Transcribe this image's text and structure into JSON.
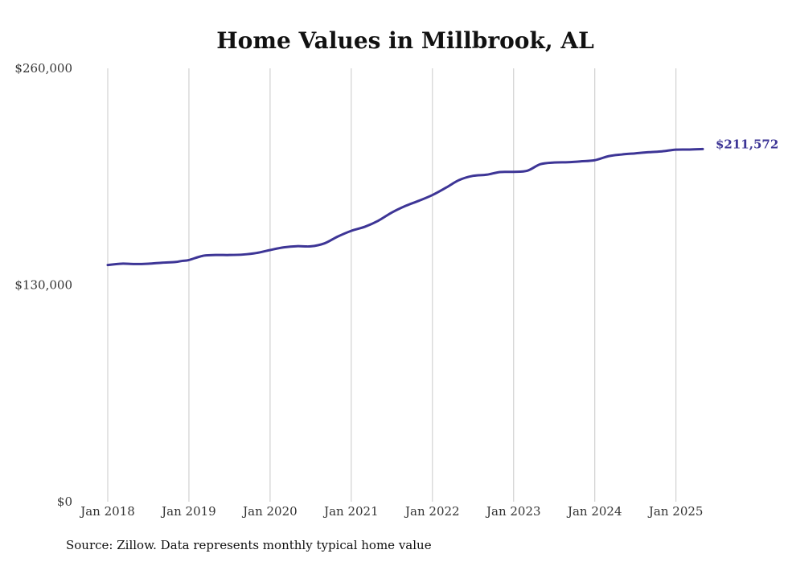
{
  "chart_data": {
    "type": "line",
    "title": "Home Values in Millbrook, AL",
    "xlabel": "",
    "ylabel": "",
    "source": "Source: Zillow. Data represents monthly typical home value",
    "ylim": [
      0,
      260000
    ],
    "y_ticks": [
      {
        "value": 0,
        "label": "$0"
      },
      {
        "value": 130000,
        "label": "$130,000"
      },
      {
        "value": 260000,
        "label": "$260,000"
      }
    ],
    "x_ticks": [
      {
        "value": 2018.0,
        "label": "Jan 2018"
      },
      {
        "value": 2019.0,
        "label": "Jan 2019"
      },
      {
        "value": 2020.0,
        "label": "Jan 2020"
      },
      {
        "value": 2021.0,
        "label": "Jan 2021"
      },
      {
        "value": 2022.0,
        "label": "Jan 2022"
      },
      {
        "value": 2023.0,
        "label": "Jan 2023"
      },
      {
        "value": 2024.0,
        "label": "Jan 2024"
      },
      {
        "value": 2025.0,
        "label": "Jan 2025"
      }
    ],
    "xlim": [
      2018.0,
      2025.33
    ],
    "grid": "vertical",
    "line_color": "#3d3596",
    "end_label": "$211,572",
    "series": [
      {
        "points": [
          [
            2018.0,
            142000
          ],
          [
            2018.17,
            142800
          ],
          [
            2018.33,
            142600
          ],
          [
            2018.5,
            142800
          ],
          [
            2018.67,
            143400
          ],
          [
            2018.83,
            143800
          ],
          [
            2018.92,
            144500
          ],
          [
            2019.0,
            145000
          ],
          [
            2019.17,
            147500
          ],
          [
            2019.33,
            148000
          ],
          [
            2019.5,
            148000
          ],
          [
            2019.67,
            148300
          ],
          [
            2019.83,
            149200
          ],
          [
            2020.0,
            151000
          ],
          [
            2020.17,
            152600
          ],
          [
            2020.33,
            153300
          ],
          [
            2020.5,
            153200
          ],
          [
            2020.67,
            155000
          ],
          [
            2020.83,
            159000
          ],
          [
            2021.0,
            162500
          ],
          [
            2021.17,
            165000
          ],
          [
            2021.33,
            168500
          ],
          [
            2021.5,
            173500
          ],
          [
            2021.67,
            177500
          ],
          [
            2021.83,
            180500
          ],
          [
            2022.0,
            184000
          ],
          [
            2022.17,
            188500
          ],
          [
            2022.33,
            193000
          ],
          [
            2022.5,
            195500
          ],
          [
            2022.67,
            196200
          ],
          [
            2022.83,
            197800
          ],
          [
            2023.0,
            197900
          ],
          [
            2023.17,
            198600
          ],
          [
            2023.33,
            202500
          ],
          [
            2023.5,
            203500
          ],
          [
            2023.67,
            203700
          ],
          [
            2023.83,
            204200
          ],
          [
            2024.0,
            204900
          ],
          [
            2024.17,
            207300
          ],
          [
            2024.33,
            208300
          ],
          [
            2024.5,
            209000
          ],
          [
            2024.67,
            209700
          ],
          [
            2024.83,
            210200
          ],
          [
            2025.0,
            211200
          ],
          [
            2025.17,
            211300
          ],
          [
            2025.33,
            211572
          ]
        ]
      }
    ]
  }
}
